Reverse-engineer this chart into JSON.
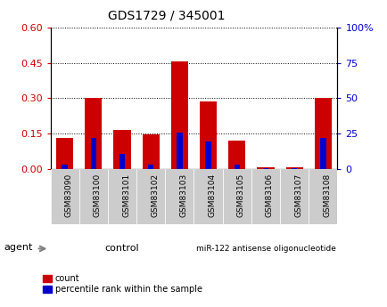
{
  "title": "GDS1729 / 345001",
  "categories": [
    "GSM83090",
    "GSM83100",
    "GSM83101",
    "GSM83102",
    "GSM83103",
    "GSM83104",
    "GSM83105",
    "GSM83106",
    "GSM83107",
    "GSM83108"
  ],
  "red_values": [
    0.13,
    0.3,
    0.165,
    0.145,
    0.455,
    0.285,
    0.12,
    0.008,
    0.008,
    0.3
  ],
  "blue_values": [
    0.018,
    0.13,
    0.065,
    0.018,
    0.155,
    0.115,
    0.018,
    0.003,
    0.003,
    0.13
  ],
  "left_ylim": [
    0,
    0.6
  ],
  "left_yticks": [
    0,
    0.15,
    0.3,
    0.45,
    0.6
  ],
  "right_ylim": [
    0,
    100
  ],
  "right_yticks": [
    0,
    25,
    50,
    75,
    100
  ],
  "right_yticklabels": [
    "0",
    "25",
    "50",
    "75",
    "100%"
  ],
  "left_color": "#cc0000",
  "right_color": "#0000cc",
  "bar_width": 0.6,
  "blue_bar_width": 0.2,
  "control_label": "control",
  "treatment_label": "miR-122 antisense oligonucleotide",
  "agent_label": "agent",
  "legend_count_label": "count",
  "legend_pct_label": "percentile rank within the sample",
  "control_color": "#ccffcc",
  "treatment_color": "#aaffaa",
  "xlabel_bg": "#cccccc",
  "n_control": 5,
  "n_total": 10
}
